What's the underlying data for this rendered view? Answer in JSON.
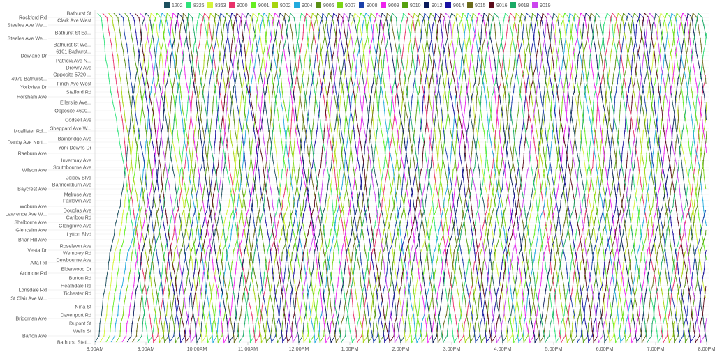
{
  "chart_data": {
    "type": "line",
    "title": "",
    "xlabel": "",
    "ylabel": "",
    "grid": true,
    "legend_placement": "top",
    "x_ticks": [
      "8:00AM",
      "9:00AM",
      "10:00AM",
      "11:00AM",
      "12:00PM",
      "1:00PM",
      "2:00PM",
      "3:00PM",
      "4:00PM",
      "5:00PM",
      "6:00PM",
      "7:00PM",
      "8:00PM"
    ],
    "xlim": [
      "8:00AM",
      "8:00PM"
    ],
    "stops": [
      "Bathurst St",
      "Rockford Rd",
      "Clark Ave West",
      "Steeles Ave We...",
      "Bathurst St Ea...",
      "Steeles Ave We...",
      "Bathurst St We...",
      "6101 Bathurst...",
      "Dewlane Dr",
      "Patricia Ave N...",
      "Drewry Ave",
      "Opposite 5720 ...",
      "4979 Bathurst...",
      "Finch Ave West",
      "Yorkview Dr",
      "Stafford Rd",
      "Horsham Ave",
      "Ellerslie Ave...",
      "Opposite 4600...",
      "Codsell Ave",
      "Sheppard Ave W...",
      "Mcallister Rd...",
      "Bainbridge Ave",
      "Danby Ave Nort...",
      "York Downs Dr",
      "Raeburn Ave",
      "Invermay Ave",
      "Southbourne Ave",
      "Wilson Ave",
      "Joicey Blvd",
      "Bannockburn Ave",
      "Baycrest Ave",
      "Melrose Ave",
      "Fairlawn Ave",
      "Woburn Ave",
      "Douglas Ave",
      "Lawrence Ave W...",
      "Caribou Rd",
      "Shelborne Ave",
      "Glengrove Ave",
      "Glencairn Ave",
      "Lytton Blvd",
      "Briar Hill Ave",
      "Roselawn Ave",
      "Vesta Dr",
      "Wembley Rd",
      "Dewbourne Ave",
      "Alta Rd",
      "Elderwood Dr",
      "Ardmore Rd",
      "Burton Rd",
      "Heathdale Rd",
      "Lonsdale Rd",
      "Tichester Rd",
      "St Clair Ave W...",
      "Nina St",
      "Davenport Rd",
      "Bridgman Ave",
      "Dupont St",
      "Wells St",
      "Barton Ave",
      "Bathurst Stati..."
    ],
    "series": [
      {
        "name": "1202",
        "color": "#1d4f5e",
        "first_end": "south",
        "terminal_times": [
          "8:00",
          "9:00",
          "10:00",
          "11:00",
          "12:00",
          "13:00",
          "14:00",
          "15:00",
          "16:00",
          "17:00",
          "18:00",
          "19:00"
        ]
      },
      {
        "name": "8326",
        "color": "#2ee27a",
        "first_end": "north",
        "terminal_times": [
          "8:03",
          "9:03",
          "10:03",
          "11:03",
          "12:03",
          "13:03",
          "14:03",
          "15:03",
          "16:03",
          "17:03",
          "18:03",
          "19:03"
        ]
      },
      {
        "name": "8363",
        "color": "#d4f53a",
        "first_end": "south",
        "terminal_times": [
          "8:06",
          "9:06",
          "10:06",
          "11:06",
          "12:06",
          "13:06",
          "14:06",
          "15:06",
          "16:06",
          "17:06",
          "18:06",
          "19:06"
        ]
      },
      {
        "name": "9000",
        "color": "#e8326a",
        "first_end": "north",
        "terminal_times": [
          "8:09",
          "9:09",
          "10:09",
          "11:09",
          "12:09",
          "13:09",
          "14:09",
          "15:09",
          "16:09",
          "17:09",
          "18:09",
          "19:09"
        ]
      },
      {
        "name": "9001",
        "color": "#66ee22",
        "first_end": "south",
        "terminal_times": [
          "8:13",
          "9:13",
          "10:13",
          "11:13",
          "12:13",
          "13:13",
          "14:13",
          "15:13",
          "16:13",
          "17:13",
          "18:13",
          "19:13"
        ]
      },
      {
        "name": "9002",
        "color": "#a6d40f",
        "first_end": "north",
        "terminal_times": [
          "8:16",
          "9:16",
          "10:16",
          "11:16",
          "12:16",
          "13:16",
          "14:16",
          "15:16",
          "16:16",
          "17:16",
          "18:16",
          "19:16"
        ]
      },
      {
        "name": "9004",
        "color": "#22aadd",
        "first_end": "south",
        "terminal_times": [
          "8:19",
          "9:19",
          "10:19",
          "11:19",
          "12:19",
          "13:19",
          "14:19",
          "15:19",
          "16:19",
          "17:19",
          "18:19",
          "19:19"
        ]
      },
      {
        "name": "9006",
        "color": "#5a8f14",
        "first_end": "north",
        "terminal_times": [
          "8:22",
          "9:22",
          "10:22",
          "11:22",
          "12:22",
          "13:22",
          "14:22",
          "15:22",
          "16:22",
          "17:22",
          "18:22",
          "19:22"
        ]
      },
      {
        "name": "9007",
        "color": "#7ad614",
        "first_end": "south",
        "terminal_times": [
          "8:25",
          "9:25",
          "10:25",
          "11:25",
          "12:25",
          "13:25",
          "14:25",
          "15:25",
          "16:25",
          "17:25",
          "18:25",
          "19:25"
        ]
      },
      {
        "name": "9008",
        "color": "#1a3fa8",
        "first_end": "north",
        "terminal_times": [
          "8:28",
          "9:28",
          "10:28",
          "11:28",
          "12:28",
          "13:28",
          "14:28",
          "15:28",
          "16:28",
          "17:28",
          "18:28",
          "19:28"
        ]
      },
      {
        "name": "9009",
        "color": "#ee22ee",
        "first_end": "south",
        "terminal_times": [
          "8:32",
          "9:32",
          "10:32",
          "11:32",
          "12:32",
          "13:32",
          "14:32",
          "15:32",
          "16:32",
          "17:32",
          "18:32",
          "19:32"
        ]
      },
      {
        "name": "9010",
        "color": "#56a010",
        "first_end": "north",
        "terminal_times": [
          "8:35",
          "9:35",
          "10:35",
          "11:35",
          "12:35",
          "13:35",
          "14:35",
          "15:35",
          "16:35",
          "17:35",
          "18:35",
          "19:35"
        ]
      },
      {
        "name": "9012",
        "color": "#0a1a5a",
        "first_end": "south",
        "terminal_times": [
          "8:38",
          "9:38",
          "10:38",
          "11:38",
          "12:38",
          "13:38",
          "14:38",
          "15:38",
          "16:38",
          "17:38",
          "18:38",
          "19:38"
        ]
      },
      {
        "name": "9014",
        "color": "#1a11a0",
        "first_end": "north",
        "terminal_times": [
          "8:41",
          "9:41",
          "10:41",
          "11:41",
          "12:41",
          "13:41",
          "14:41",
          "15:41",
          "16:41",
          "17:41",
          "18:41",
          "19:41"
        ]
      },
      {
        "name": "9015",
        "color": "#6a6a1a",
        "first_end": "south",
        "terminal_times": [
          "8:44",
          "9:44",
          "10:44",
          "11:44",
          "12:44",
          "13:44",
          "14:44",
          "15:44",
          "16:44",
          "17:44",
          "18:44",
          "19:44"
        ]
      },
      {
        "name": "9016",
        "color": "#5a0a1a",
        "first_end": "north",
        "terminal_times": [
          "8:47",
          "9:47",
          "10:47",
          "11:47",
          "12:47",
          "13:47",
          "14:47",
          "15:47",
          "16:47",
          "17:47",
          "18:47",
          "19:47"
        ]
      },
      {
        "name": "9018",
        "color": "#1aaa66",
        "first_end": "south",
        "terminal_times": [
          "8:50",
          "9:50",
          "10:50",
          "11:50",
          "12:50",
          "13:50",
          "14:50",
          "15:50",
          "16:50",
          "17:50",
          "18:50",
          "19:50"
        ]
      },
      {
        "name": "9019",
        "color": "#cc44ee",
        "first_end": "north",
        "terminal_times": [
          "8:53",
          "9:53",
          "10:53",
          "11:53",
          "12:53",
          "13:53",
          "14:53",
          "15:53",
          "16:53",
          "17:53",
          "18:53",
          "19:53"
        ]
      }
    ]
  }
}
